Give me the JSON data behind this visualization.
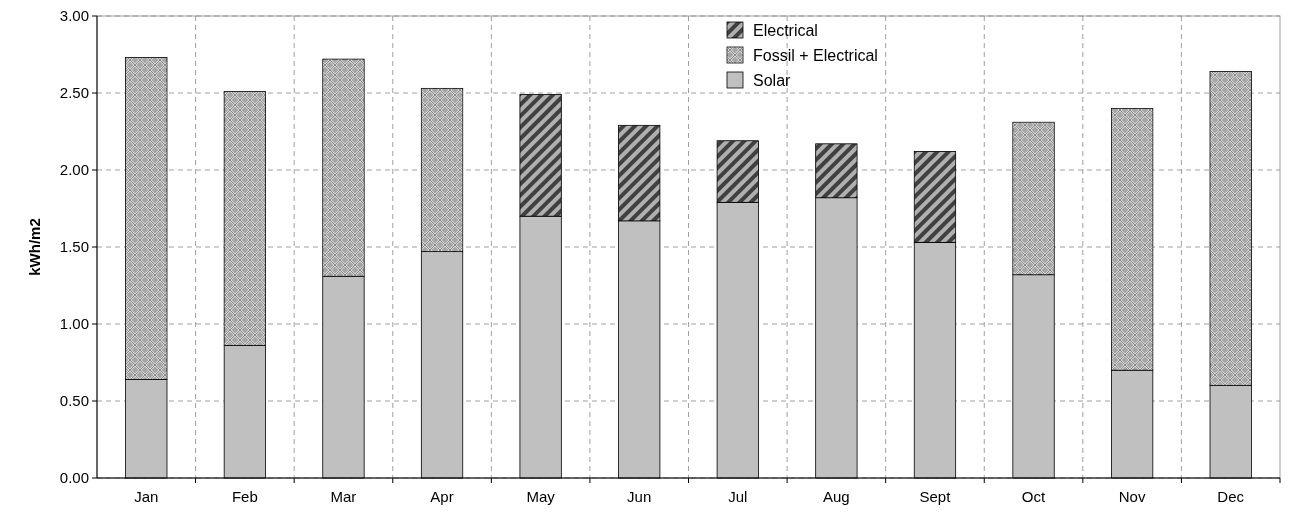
{
  "chart_data": {
    "type": "bar",
    "stacked": true,
    "ylabel": "kWh/m2",
    "categories": [
      "Jan",
      "Feb",
      "Mar",
      "Apr",
      "May",
      "Jun",
      "Jul",
      "Aug",
      "Sept",
      "Oct",
      "Nov",
      "Dec"
    ],
    "series": [
      {
        "name": "Solar",
        "color": "#c0c0c0",
        "values": [
          0.64,
          0.86,
          1.31,
          1.47,
          1.7,
          1.67,
          1.79,
          1.82,
          1.53,
          1.32,
          0.7,
          0.6
        ]
      },
      {
        "name": "Fossil + Electrical",
        "color": "#a6a6a6",
        "values": [
          2.09,
          1.65,
          1.41,
          1.06,
          null,
          null,
          null,
          null,
          null,
          0.99,
          1.7,
          2.04
        ]
      },
      {
        "name": "Electrical",
        "color": "#404040",
        "values": [
          null,
          null,
          null,
          null,
          0.79,
          0.62,
          0.4,
          0.35,
          0.59,
          null,
          null,
          null
        ]
      }
    ],
    "ylim": [
      0,
      3
    ],
    "yticks": [
      {
        "value": 0,
        "label": "0.00"
      },
      {
        "value": 0.5,
        "label": "0.50"
      },
      {
        "value": 1,
        "label": "1.00"
      },
      {
        "value": 1.5,
        "label": "1.50"
      },
      {
        "value": 2,
        "label": "2.00"
      },
      {
        "value": 2.5,
        "label": "2.50"
      },
      {
        "value": 3,
        "label": "3.00"
      }
    ],
    "grid": true,
    "legend": "top"
  }
}
